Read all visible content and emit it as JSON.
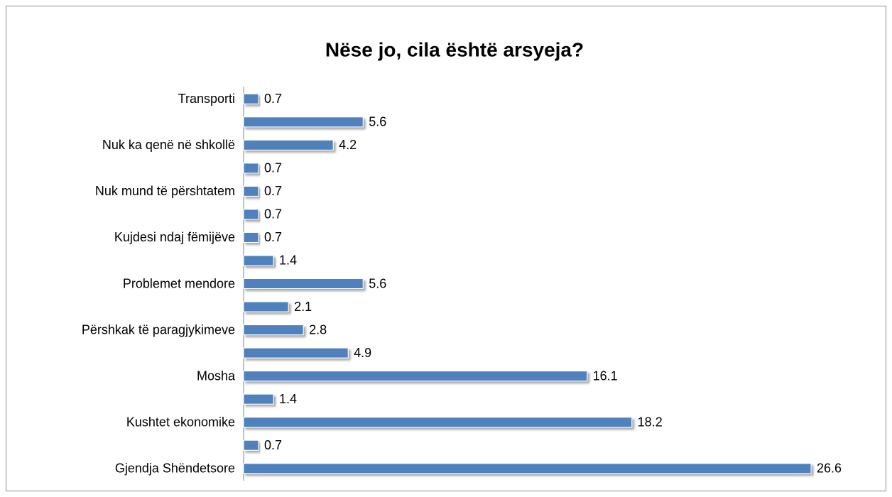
{
  "chart_data": {
    "type": "barh",
    "title": "Nëse jo, cila është arsyeja?",
    "categories": [
      "Transporti",
      null,
      "Nuk ka qenë në shkollë",
      null,
      "Nuk mund të përshtatem",
      null,
      "Kujdesi ndaj fëmijëve",
      null,
      "Problemet mendore",
      null,
      "Përshkak të paragjykimeve",
      null,
      "Mosha",
      null,
      "Kushtet ekonomike",
      null,
      "Gjendja Shëndetsore"
    ],
    "values": [
      0.7,
      5.6,
      4.2,
      0.7,
      0.7,
      0.7,
      0.7,
      1.4,
      5.6,
      2.1,
      2.8,
      4.9,
      16.1,
      1.4,
      18.2,
      0.7,
      26.6
    ],
    "color": "#4f81bd"
  }
}
